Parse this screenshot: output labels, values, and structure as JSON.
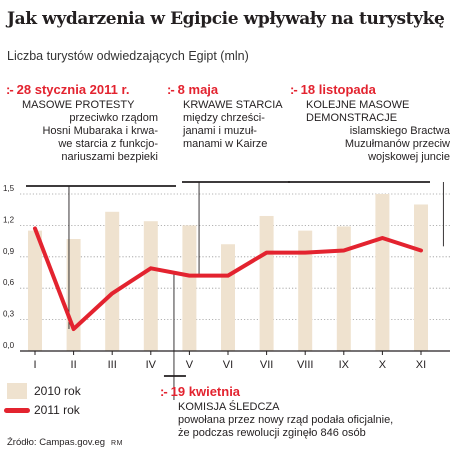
{
  "title": "Jak wydarzenia w Egipcie wpływały na turystykę",
  "subtitle": "Liczba turystów odwiedzających Egipt (mln)",
  "annotations": [
    {
      "mark": ":-",
      "date": "28 stycznia 2011 r.",
      "heading": "MASOWE PROTESTY",
      "body": "przeciwko rządom\nHosni Mubaraka i krwa-\nwe starcia z funkcjo-\nnariuszami bezpieki"
    },
    {
      "mark": ":-",
      "date": "8 maja",
      "heading": "KRWAWE STARCIA",
      "body": "między chrześci-\njanami i muzuł-\nmanami w Kairze"
    },
    {
      "mark": ":-",
      "date": "18 listopada",
      "heading": "KOLEJNE MASOWE\nDEMONSTRACJE",
      "body": "islamskiego Bractwa\nMuzułmanów przeciw\nwojskowej juncie"
    },
    {
      "mark": ":-",
      "date": "19 kwietnia",
      "heading": "KOMISJA ŚLEDCZA",
      "body": "powołana przez nowy rząd podała oficjalnie,\nże podczas rewolucji zginęło 846 osób"
    }
  ],
  "legend": {
    "bars": "2010 rok",
    "line": "2011 rok"
  },
  "source": {
    "text": "Źródło: Campas.gov.eg",
    "author": "RM"
  },
  "colors": {
    "bars": "#efe2cf",
    "line": "#e3232f",
    "accent": "#e3232f",
    "text": "#231f20"
  },
  "chart_data": {
    "type": "bar",
    "categories": [
      "I",
      "II",
      "III",
      "IV",
      "V",
      "VI",
      "VII",
      "VIII",
      "IX",
      "X",
      "XI"
    ],
    "series": [
      {
        "name": "2010 rok",
        "type": "bar",
        "values": [
          1.15,
          1.07,
          1.33,
          1.24,
          1.2,
          1.02,
          1.29,
          1.15,
          1.19,
          1.5,
          1.4
        ]
      },
      {
        "name": "2011 rok",
        "type": "line",
        "values": [
          1.17,
          0.21,
          0.55,
          0.79,
          0.72,
          0.72,
          0.94,
          0.94,
          0.96,
          1.08,
          0.96
        ]
      }
    ],
    "y_ticks": [
      "0,0",
      "0,3",
      "0,6",
      "0,9",
      "1,2",
      "1,5"
    ],
    "ylim": [
      0,
      1.5
    ],
    "grid": "horizontal dotted",
    "legend_position": "bottom-left"
  }
}
